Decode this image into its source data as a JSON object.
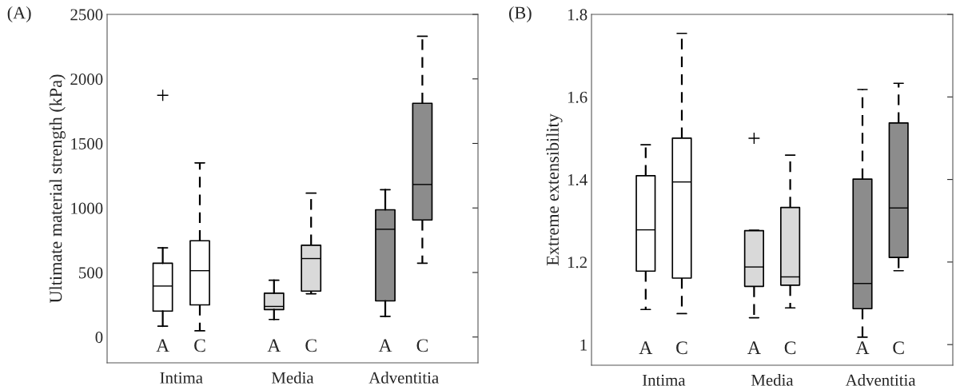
{
  "chart_data": [
    {
      "type": "box",
      "title": "(A)",
      "ylabel": "Ultimate material strength (kPa)",
      "categories": [
        "Intima",
        "Media",
        "Adventitia"
      ],
      "ylim": [
        -200,
        2500
      ],
      "yticks": [
        0,
        500,
        1000,
        1500,
        2000,
        2500
      ],
      "grid": false,
      "legend": false,
      "marker": "cross",
      "series": [
        {
          "name": "A",
          "colors": [
            "#ffffff",
            "#d9d9d9",
            "#8c8c8c"
          ],
          "line_style": "solid",
          "boxes": [
            {
              "low": 84,
              "q1": 201,
              "median": 395,
              "q3": 572,
              "high": 691,
              "outliers": [
                1873
              ]
            },
            {
              "low": 136,
              "q1": 213,
              "median": 237,
              "q3": 340,
              "high": 440
            },
            {
              "low": 160,
              "q1": 280,
              "median": 835,
              "q3": 986,
              "high": 1141
            }
          ]
        },
        {
          "name": "C",
          "colors": [
            "#ffffff",
            "#d9d9d9",
            "#8c8c8c"
          ],
          "line_style": "dashed",
          "boxes": [
            {
              "low": 48,
              "q1": 249,
              "median": 514,
              "q3": 746,
              "high": 1349
            },
            {
              "low": 335,
              "q1": 356,
              "median": 608,
              "q3": 711,
              "high": 1115
            },
            {
              "low": 572,
              "q1": 907,
              "median": 1182,
              "q3": 1811,
              "high": 2330
            }
          ]
        }
      ]
    },
    {
      "type": "box",
      "title": "(B)",
      "ylabel": "Extreme extensibility",
      "categories": [
        "Intima",
        "Media",
        "Adventitia"
      ],
      "ylim": [
        0.95,
        1.8
      ],
      "yticks": [
        1,
        1.2,
        1.4,
        1.6,
        1.8
      ],
      "grid": false,
      "legend": false,
      "marker": "cross",
      "series": [
        {
          "name": "A",
          "colors": [
            "#ffffff",
            "#d9d9d9",
            "#8c8c8c"
          ],
          "line_style": "dashed",
          "boxes": [
            {
              "low": 1.085,
              "q1": 1.178,
              "median": 1.278,
              "q3": 1.409,
              "high": 1.484
            },
            {
              "low": 1.065,
              "q1": 1.141,
              "median": 1.188,
              "q3": 1.276,
              "high": 1.277,
              "outliers": [
                1.5
              ]
            },
            {
              "low": 1.018,
              "q1": 1.087,
              "median": 1.148,
              "q3": 1.401,
              "high": 1.618
            }
          ]
        },
        {
          "name": "C",
          "colors": [
            "#ffffff",
            "#d9d9d9",
            "#8c8c8c"
          ],
          "line_style": "dashed",
          "boxes": [
            {
              "low": 1.075,
              "q1": 1.161,
              "median": 1.394,
              "q3": 1.5,
              "high": 1.754
            },
            {
              "low": 1.089,
              "q1": 1.144,
              "median": 1.164,
              "q3": 1.332,
              "high": 1.459
            },
            {
              "low": 1.179,
              "q1": 1.211,
              "median": 1.331,
              "q3": 1.537,
              "high": 1.633
            }
          ]
        }
      ]
    }
  ]
}
